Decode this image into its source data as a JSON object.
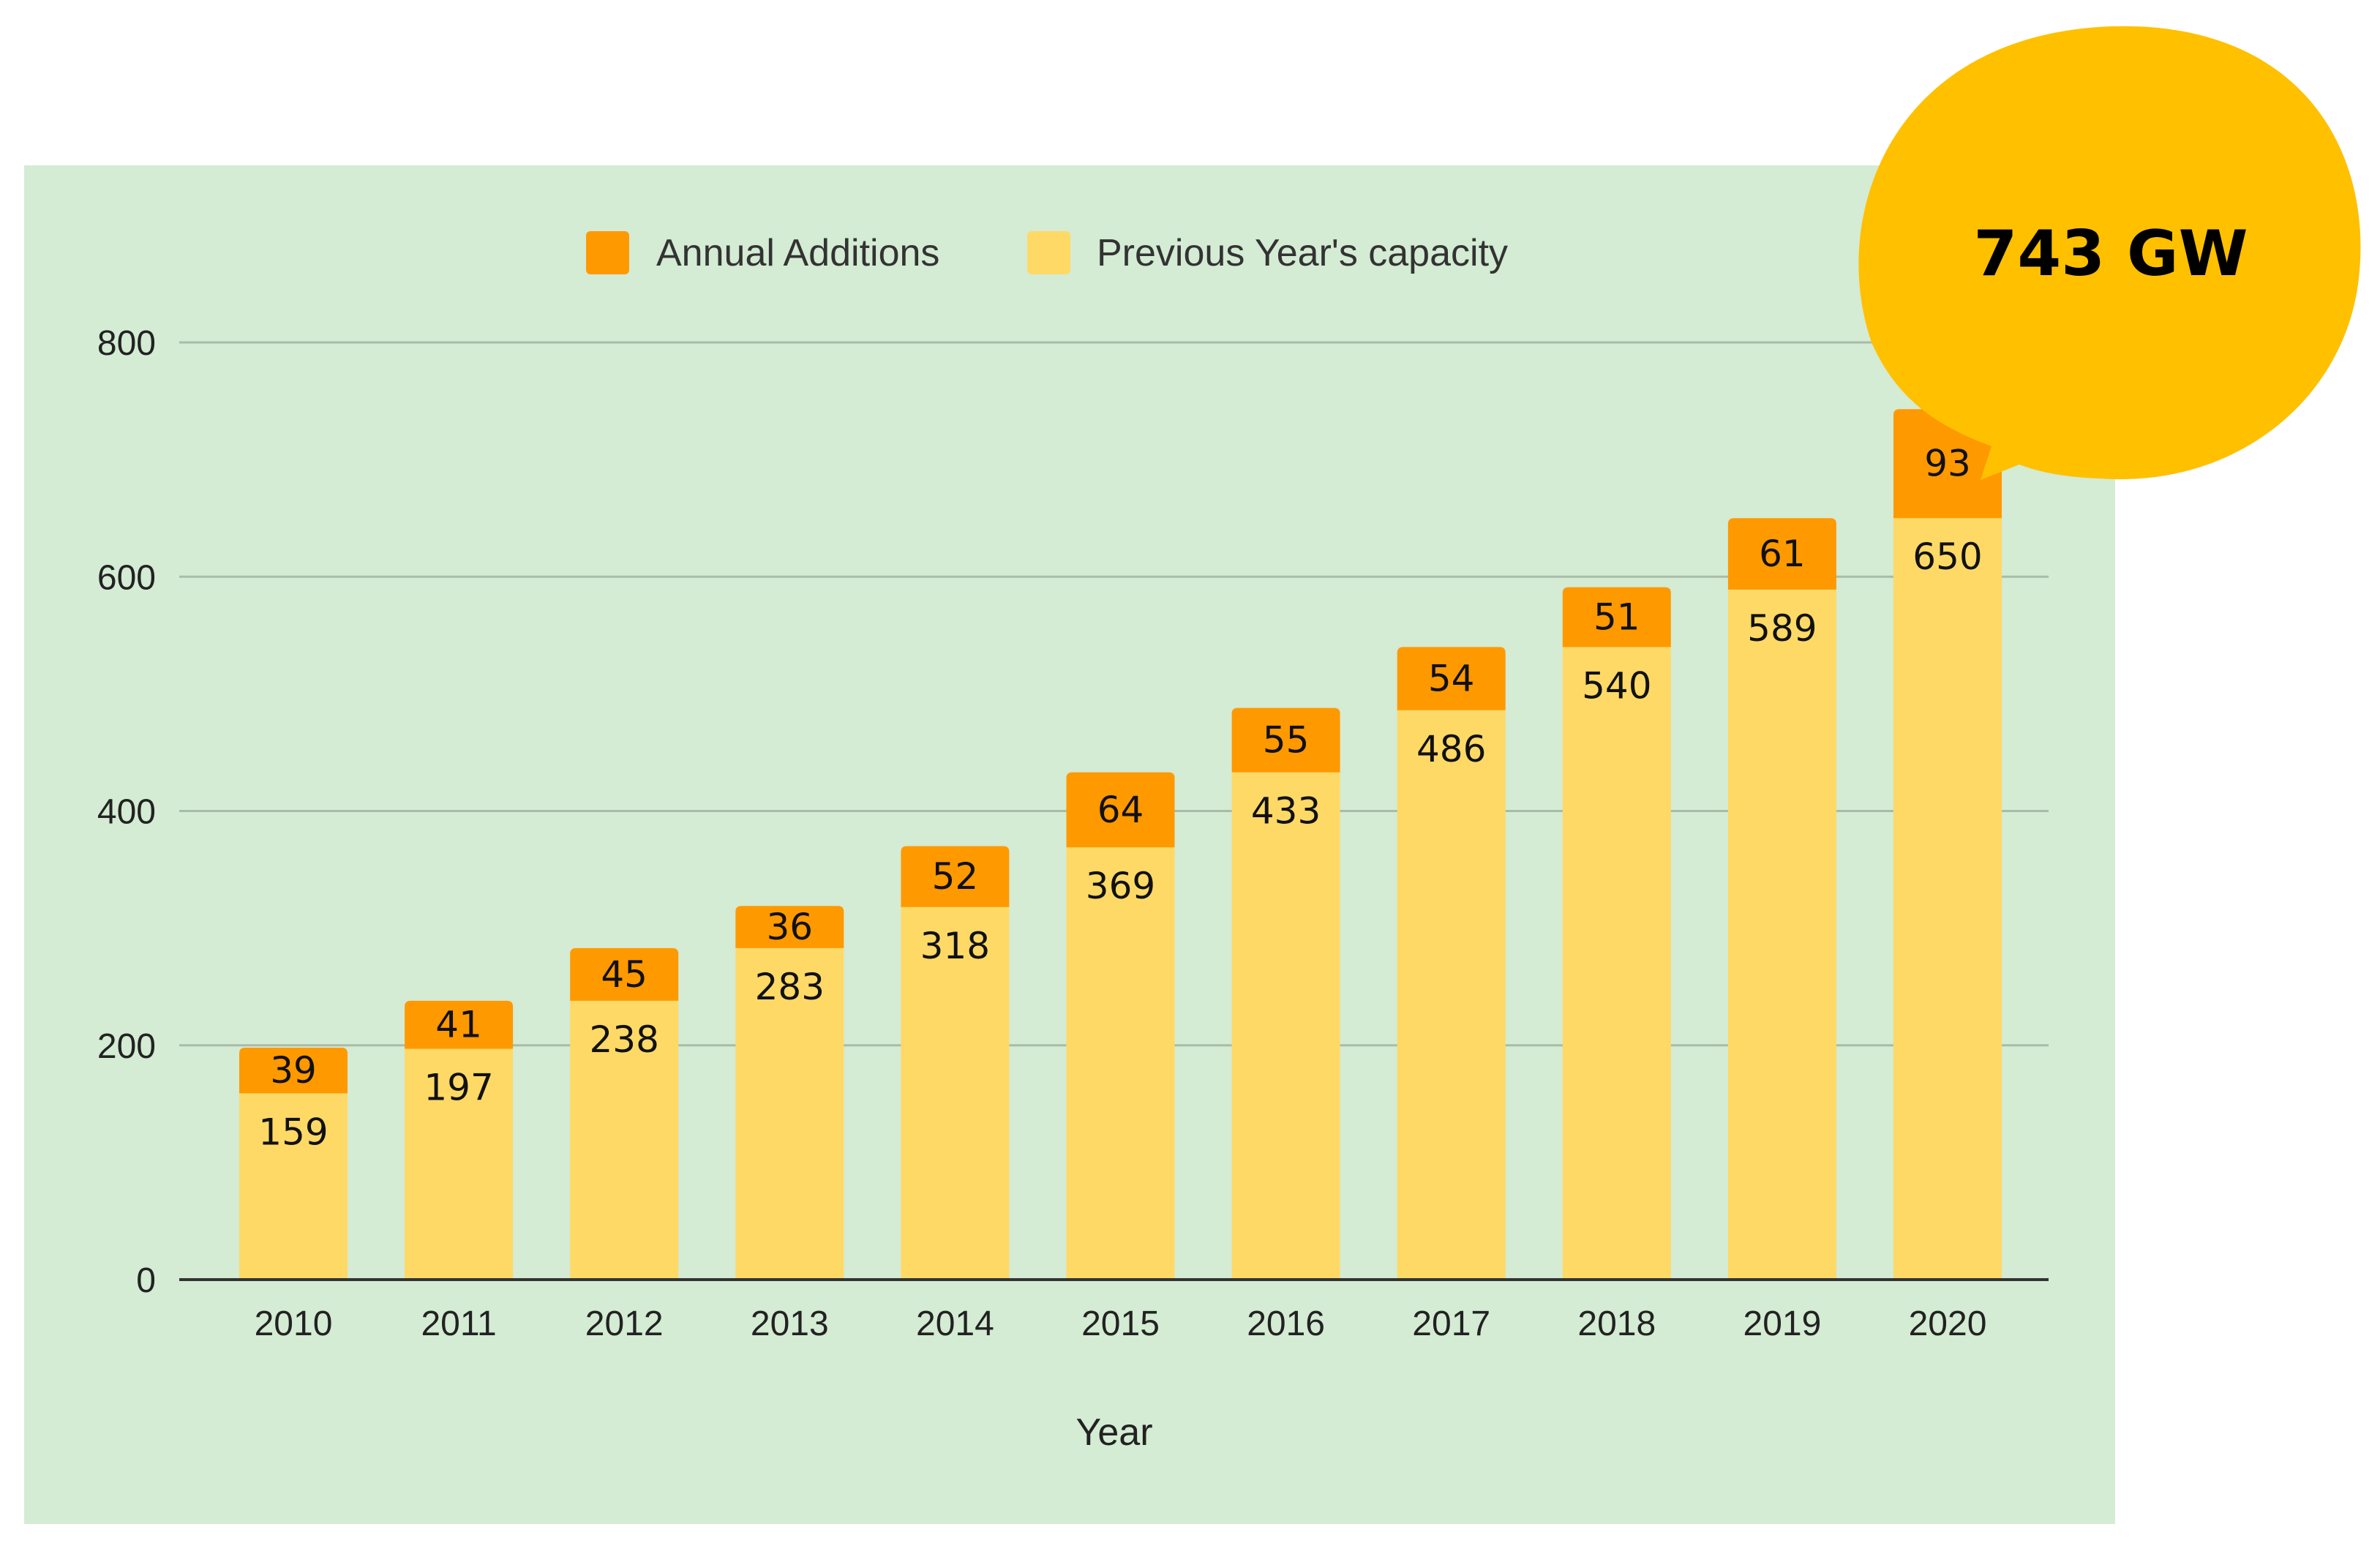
{
  "chart_data": {
    "type": "bar",
    "stacked": true,
    "categories": [
      "2010",
      "2011",
      "2012",
      "2013",
      "2014",
      "2015",
      "2016",
      "2017",
      "2018",
      "2019",
      "2020"
    ],
    "series": [
      {
        "name": "Previous Year's capacity",
        "values": [
          159,
          197,
          238,
          283,
          318,
          369,
          433,
          486,
          540,
          589,
          650
        ]
      },
      {
        "name": "Annual Additions",
        "values": [
          39,
          41,
          45,
          36,
          52,
          64,
          55,
          54,
          51,
          61,
          93
        ]
      }
    ],
    "xlabel": "Year",
    "ylabel": "",
    "ylim": [
      0,
      800
    ],
    "yticks": [
      "0",
      "200",
      "400",
      "600",
      "800"
    ],
    "grid": true,
    "legend": {
      "placement": "top-center",
      "items": [
        {
          "label": "Annual Additions",
          "color": "#FF9900"
        },
        {
          "label": "Previous Year's capacity",
          "color": "#FFD966"
        }
      ]
    },
    "callout": {
      "text": "743 GW",
      "target_category": "2020"
    }
  },
  "colors": {
    "background": "#D4EBD4",
    "additions": "#FF9900",
    "previous": "#FFD966",
    "bubble": "#FFC000",
    "grid": "#A9BBA9",
    "axis": "#333333"
  }
}
